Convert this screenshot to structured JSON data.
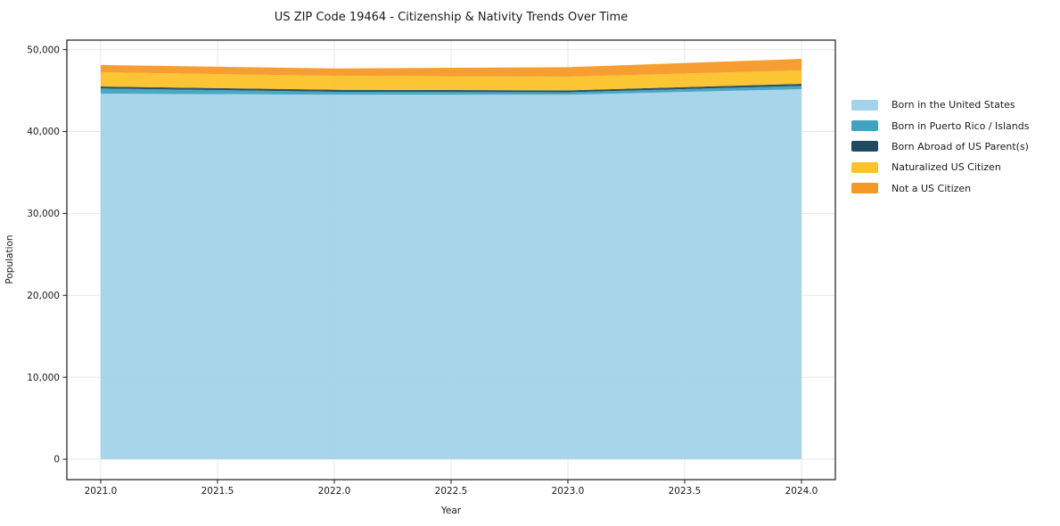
{
  "chart_data": {
    "type": "area",
    "stacked": true,
    "title": "US ZIP Code 19464 - Citizenship & Nativity Trends Over Time",
    "xlabel": "Year",
    "ylabel": "Population",
    "x": [
      2021,
      2022,
      2023,
      2024
    ],
    "series": [
      {
        "name": "Born in the United States",
        "color": "#a3d3e8",
        "values": [
          44630,
          44490,
          44490,
          45170
        ]
      },
      {
        "name": "Born in Puerto Rico / Islands",
        "color": "#41a3c1",
        "values": [
          620,
          360,
          300,
          400
        ]
      },
      {
        "name": "Born Abroad of US Parent(s)",
        "color": "#1f4a5f",
        "values": [
          250,
          250,
          240,
          250
        ]
      },
      {
        "name": "Naturalized US Citizen",
        "color": "#fcc229",
        "values": [
          1740,
          1700,
          1670,
          1650
        ]
      },
      {
        "name": "Not a US Citizen",
        "color": "#f59926",
        "values": [
          880,
          900,
          1160,
          1400
        ]
      }
    ],
    "xlim": [
      2020.855,
      2024.145
    ],
    "ylim": [
      -2500,
      51160
    ],
    "xticks": [
      {
        "v": 2021.0,
        "label": "2021.0"
      },
      {
        "v": 2021.5,
        "label": "2021.5"
      },
      {
        "v": 2022.0,
        "label": "2022.0"
      },
      {
        "v": 2022.5,
        "label": "2022.5"
      },
      {
        "v": 2023.0,
        "label": "2023.0"
      },
      {
        "v": 2023.5,
        "label": "2023.5"
      },
      {
        "v": 2024.0,
        "label": "2024.0"
      }
    ],
    "yticks": [
      {
        "v": 0,
        "label": "0"
      },
      {
        "v": 10000,
        "label": "10,000"
      },
      {
        "v": 20000,
        "label": "20,000"
      },
      {
        "v": 30000,
        "label": "30,000"
      },
      {
        "v": 40000,
        "label": "40,000"
      },
      {
        "v": 50000,
        "label": "50,000"
      }
    ],
    "grid": true,
    "grid_color": "#e7e7e7",
    "spine_color": "#1a1a1a",
    "legend_position": "right-outside"
  }
}
